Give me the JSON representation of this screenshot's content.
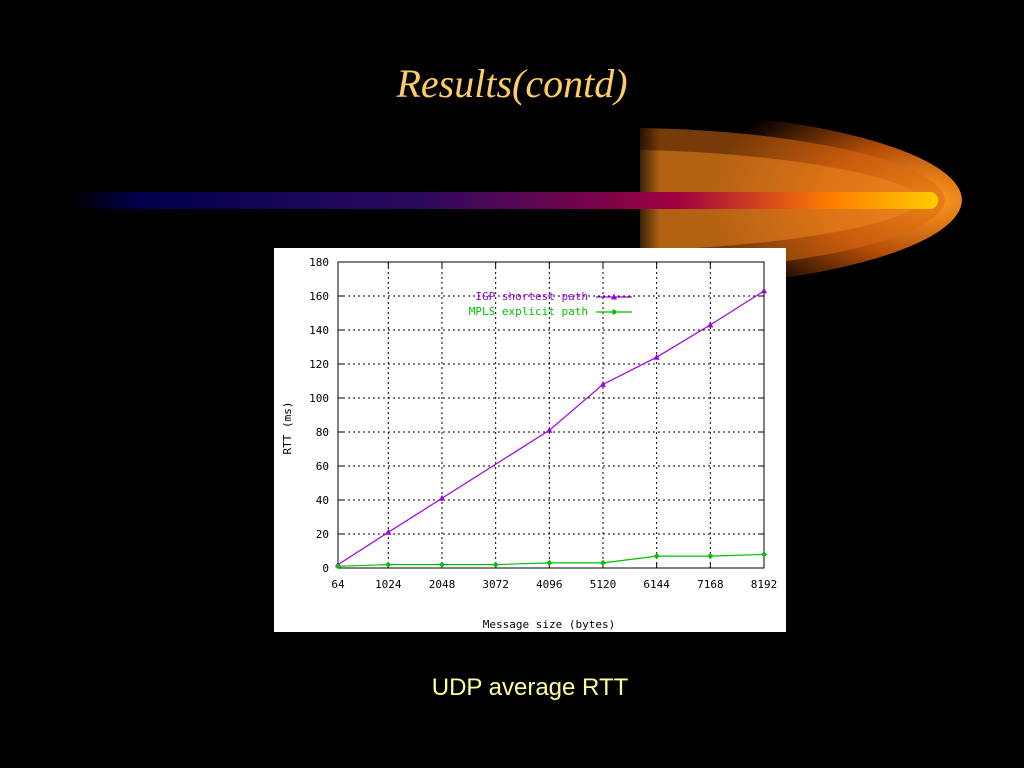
{
  "slide": {
    "title": "Results(contd)",
    "caption": "UDP average RTT"
  },
  "colors": {
    "title": "#FFCC66",
    "caption": "#FFFF99",
    "igp_series": "#A000E0",
    "mpls_series": "#00C000"
  },
  "chart_data": {
    "type": "line",
    "xlabel": "Message size (bytes)",
    "ylabel": "RTT (ms)",
    "x": [
      64,
      1024,
      2048,
      3072,
      4096,
      5120,
      6144,
      7168,
      8192
    ],
    "x_ticks": [
      "64",
      "1024",
      "2048",
      "3072",
      "4096",
      "5120",
      "6144",
      "7168",
      "8192"
    ],
    "y_ticks": [
      "0",
      "20",
      "40",
      "60",
      "80",
      "100",
      "120",
      "140",
      "160",
      "180"
    ],
    "xlim": [
      64,
      8192
    ],
    "ylim": [
      0,
      180
    ],
    "grid": true,
    "legend_position": "top-right",
    "series": [
      {
        "name": "IGP shortest path",
        "marker": "triangle",
        "color": "#A000E0",
        "x": [
          64,
          1024,
          2048,
          4096,
          5120,
          6144,
          7168,
          8192
        ],
        "values": [
          2,
          21,
          41,
          81,
          108,
          124,
          143,
          163
        ]
      },
      {
        "name": "MPLS explicit path",
        "marker": "diamond",
        "color": "#00C000",
        "x": [
          64,
          1024,
          2048,
          3072,
          4096,
          5120,
          6144,
          7168,
          8192
        ],
        "values": [
          1,
          2,
          2,
          2,
          3,
          3,
          7,
          7,
          8
        ]
      }
    ]
  }
}
